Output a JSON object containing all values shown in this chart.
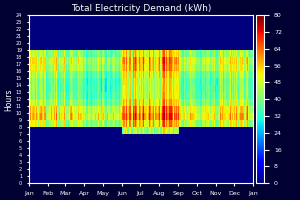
{
  "title": "Total Electricity Demand (kWh)",
  "ylabel": "Hours",
  "colorbar_ticks": [
    0,
    8,
    16,
    24,
    32,
    40,
    48,
    56,
    64,
    72,
    80
  ],
  "vmin": 0,
  "vmax": 80,
  "hours": 24,
  "days": 365,
  "month_labels": [
    "Jan",
    "Feb",
    "Mar",
    "Apr",
    "May",
    "Jun",
    "Jul",
    "Aug",
    "Sep",
    "Oct",
    "Nov",
    "Dec",
    "Jan"
  ],
  "month_positions": [
    0,
    31,
    59,
    90,
    120,
    151,
    181,
    212,
    243,
    273,
    304,
    334,
    365
  ],
  "colormap": "jet",
  "background_color": "#00008B",
  "figure_color": "#000033",
  "text_color": "white"
}
